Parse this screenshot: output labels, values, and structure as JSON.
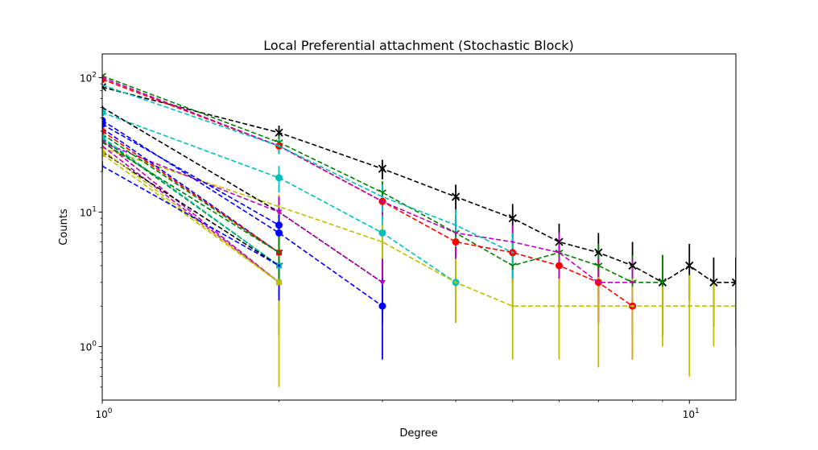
{
  "chart_data": {
    "type": "line",
    "title": "Local Preferential attachment (Stochastic Block)",
    "xlabel": "Degree",
    "ylabel": "Counts",
    "xscale": "log",
    "yscale": "log",
    "xlim": [
      1,
      12
    ],
    "ylim": [
      0.4,
      150
    ],
    "grid": false,
    "line_style": "dashed",
    "x_ticks": [
      {
        "value": 1,
        "base": "10",
        "exp": "0"
      },
      {
        "value": 10,
        "base": "10",
        "exp": "1"
      }
    ],
    "y_ticks": [
      {
        "value": 1,
        "base": "10",
        "exp": "0"
      },
      {
        "value": 10,
        "base": "10",
        "exp": "1"
      },
      {
        "value": 100,
        "base": "10",
        "exp": "2"
      }
    ],
    "series": [
      {
        "color": "#000000",
        "marker": "x",
        "x": [
          1,
          2,
          3,
          4,
          5,
          6,
          7,
          8,
          9,
          10,
          11,
          12
        ],
        "y": [
          85,
          39,
          21,
          13,
          9,
          6,
          5,
          4,
          3,
          4,
          3,
          3
        ],
        "err": [
          2,
          5,
          3.5,
          3,
          2.5,
          2.2,
          2,
          2,
          1.8,
          1.8,
          1.6,
          1.6
        ]
      },
      {
        "color": "#008000",
        "marker": "1",
        "x": [
          1,
          2,
          3,
          4,
          5,
          6,
          7,
          8,
          9
        ],
        "y": [
          103,
          33,
          14,
          7,
          4,
          5,
          4,
          3,
          3
        ],
        "err": [
          2,
          4,
          3,
          2.5,
          2,
          2,
          1.8,
          1.8,
          1.8
        ]
      },
      {
        "color": "#ff0000",
        "marker": "o",
        "x": [
          1,
          2,
          3,
          4,
          5,
          6,
          7,
          8
        ],
        "y": [
          97,
          31,
          12,
          6,
          5,
          4,
          3,
          2
        ],
        "err": [
          3,
          4,
          3,
          2.5,
          2,
          2,
          1.5,
          1.2
        ]
      },
      {
        "color": "#bf00bf",
        "marker": "none",
        "x": [
          1,
          2,
          3,
          4,
          5,
          6,
          7,
          8
        ],
        "y": [
          100,
          31,
          12,
          7,
          6,
          5,
          3,
          3
        ],
        "err": [
          2,
          4,
          3,
          2.5,
          2,
          2,
          1.5,
          1.5
        ]
      },
      {
        "color": "#00bfbf",
        "marker": "o",
        "x": [
          1,
          2,
          3,
          4
        ],
        "y": [
          55,
          18,
          7,
          3
        ],
        "err": [
          2,
          4,
          2.5,
          1.5
        ]
      },
      {
        "color": "#00bfbf",
        "marker": "none",
        "x": [
          1,
          2,
          3,
          4,
          5
        ],
        "y": [
          88,
          31,
          13,
          8,
          5
        ],
        "err": [
          2,
          4,
          3,
          2.5,
          2
        ]
      },
      {
        "color": "#bfbf00",
        "marker": "none",
        "x": [
          1,
          2,
          3,
          4,
          5,
          6,
          7,
          8,
          9,
          10,
          11,
          12
        ],
        "y": [
          30,
          11,
          6,
          3,
          2,
          2,
          2,
          2,
          2,
          2,
          2,
          2
        ],
        "err": [
          2,
          2.5,
          2,
          1.5,
          1.2,
          1.2,
          1.3,
          1.2,
          1,
          1.4,
          1,
          1
        ]
      },
      {
        "color": "#000000",
        "marker": "none",
        "x": [
          1,
          2,
          3
        ],
        "y": [
          60,
          10,
          3
        ],
        "err": [
          2,
          3,
          1.5
        ]
      },
      {
        "color": "#bf00bf",
        "marker": "v",
        "x": [
          1,
          2,
          3
        ],
        "y": [
          33,
          10,
          3
        ],
        "err": [
          2,
          3,
          1.5
        ]
      },
      {
        "color": "#0000ff",
        "marker": "o",
        "x": [
          1,
          2,
          3
        ],
        "y": [
          48,
          7,
          2
        ],
        "err": [
          2,
          2.5,
          1.2
        ]
      },
      {
        "color": "#0000ff",
        "marker": "o",
        "x": [
          1,
          2
        ],
        "y": [
          45,
          8
        ],
        "err": [
          2,
          2.5
        ]
      },
      {
        "color": "#0000ff",
        "marker": "none",
        "x": [
          1,
          2
        ],
        "y": [
          42,
          5
        ],
        "err": [
          2,
          2
        ]
      },
      {
        "color": "#008000",
        "marker": "1",
        "x": [
          1,
          2
        ],
        "y": [
          38,
          5
        ],
        "err": [
          2,
          2
        ]
      },
      {
        "color": "#008000",
        "marker": "1",
        "x": [
          1,
          2
        ],
        "y": [
          35,
          4
        ],
        "err": [
          2,
          1.8
        ]
      },
      {
        "color": "#ff0000",
        "marker": "s",
        "x": [
          1,
          2
        ],
        "y": [
          40,
          5
        ],
        "err": [
          2,
          2
        ]
      },
      {
        "color": "#00bfbf",
        "marker": "s",
        "x": [
          1,
          2
        ],
        "y": [
          36,
          4
        ],
        "err": [
          2,
          1.8
        ]
      },
      {
        "color": "#bf00bf",
        "marker": "none",
        "x": [
          1,
          2
        ],
        "y": [
          34,
          3
        ],
        "err": [
          2,
          1.8
        ]
      },
      {
        "color": "#bf00bf",
        "marker": "none",
        "x": [
          1,
          2
        ],
        "y": [
          31,
          3
        ],
        "err": [
          2,
          1.8
        ]
      },
      {
        "color": "#000000",
        "marker": "none",
        "x": [
          1,
          2
        ],
        "y": [
          28,
          4
        ],
        "err": [
          2,
          1.8
        ]
      },
      {
        "color": "#bfbf00",
        "marker": "s",
        "x": [
          1,
          2
        ],
        "y": [
          27,
          3
        ],
        "err": [
          2,
          2.5
        ]
      },
      {
        "color": "#bfbf00",
        "marker": "none",
        "x": [
          1,
          2
        ],
        "y": [
          29,
          3
        ],
        "err": [
          2,
          1.5
        ]
      },
      {
        "color": "#0000ff",
        "marker": "none",
        "x": [
          1,
          2
        ],
        "y": [
          22,
          4
        ],
        "err": [
          2,
          1.8
        ]
      },
      {
        "color": "#008000",
        "marker": "none",
        "x": [
          1,
          2
        ],
        "y": [
          33,
          5
        ],
        "err": [
          2,
          2
        ]
      }
    ]
  }
}
